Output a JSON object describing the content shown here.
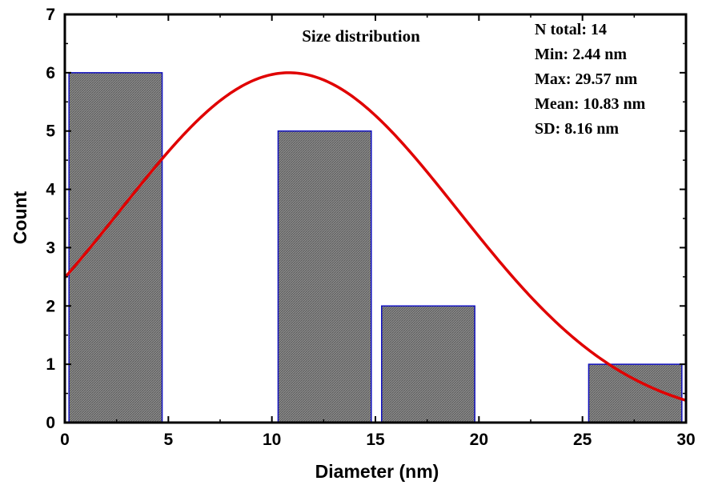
{
  "chart_data": {
    "type": "bar",
    "title": "Size distribution",
    "xlabel": "Diameter (nm)",
    "ylabel": "Count",
    "xlim": [
      0,
      30
    ],
    "ylim": [
      0,
      7
    ],
    "x_ticks": [
      "0",
      "5",
      "10",
      "15",
      "20",
      "25",
      "30"
    ],
    "y_ticks": [
      "0",
      "1",
      "2",
      "3",
      "4",
      "5",
      "6",
      "7"
    ],
    "bins": [
      {
        "x0": 0.2,
        "x1": 4.7,
        "count": 6
      },
      {
        "x0": 10.3,
        "x1": 14.8,
        "count": 5
      },
      {
        "x0": 15.3,
        "x1": 19.8,
        "count": 2
      },
      {
        "x0": 25.3,
        "x1": 29.8,
        "count": 1
      }
    ],
    "fit_curve": {
      "type": "gaussian",
      "mean": 10.83,
      "sd": 8.16,
      "peak": 6.0
    },
    "annotations": [
      "N total: 14",
      "Min: 2.44 nm",
      "Max: 29.57 nm",
      "Mean: 10.83 nm",
      "SD: 8.16 nm"
    ],
    "colors": {
      "bar_fill": "#7a7a7a",
      "bar_edge": "#1010c0",
      "curve": "#e00000"
    },
    "grid": false
  }
}
